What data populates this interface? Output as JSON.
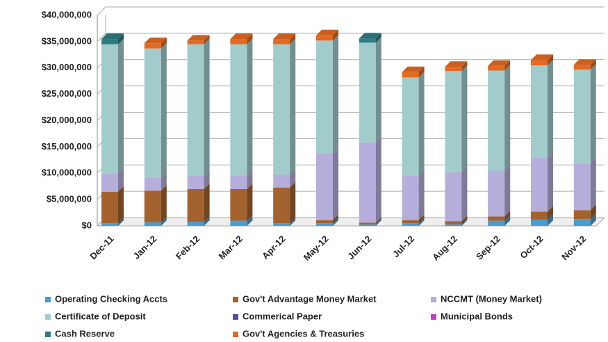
{
  "chart_data": {
    "type": "bar3d-stacked",
    "categories": [
      "Dec-11",
      "Jan-12",
      "Feb-12",
      "Mar-12",
      "Apr-12",
      "May-12",
      "Jun-12",
      "Jul-12",
      "Aug-12",
      "Sep-12",
      "Oct-12",
      "Nov-12"
    ],
    "series": [
      {
        "name": "Operating Checking Accts",
        "color": "#4a9ccf",
        "values": [
          500000,
          700000,
          800000,
          1000000,
          500000,
          500000,
          300000,
          500000,
          300000,
          1000000,
          1200000,
          1300000
        ]
      },
      {
        "name": "Gov't Advantage Money Market",
        "color": "#a3622e",
        "values": [
          6000000,
          6000000,
          6200000,
          6000000,
          6800000,
          600000,
          300000,
          600000,
          600000,
          800000,
          1500000,
          1700000
        ]
      },
      {
        "name": "NCCMT (Money Market)",
        "color": "#b5aedb",
        "values": [
          3500000,
          2500000,
          2500000,
          2500000,
          2400000,
          12700000,
          15200000,
          8500000,
          9300000,
          8700000,
          10200000,
          8900000
        ]
      },
      {
        "name": "Certificate of Deposit",
        "color": "#a2cccc",
        "values": [
          24500000,
          24500000,
          25000000,
          25000000,
          24800000,
          21400000,
          19000000,
          18600000,
          19200000,
          19000000,
          17600000,
          17800000
        ]
      },
      {
        "name": "Commerical Paper",
        "color": "#5b4b9c",
        "values": [
          0,
          0,
          0,
          0,
          0,
          0,
          0,
          0,
          0,
          0,
          0,
          0
        ]
      },
      {
        "name": "Municipal Bonds",
        "color": "#c23fc0",
        "values": [
          0,
          0,
          0,
          0,
          0,
          0,
          0,
          0,
          0,
          0,
          0,
          0
        ]
      },
      {
        "name": "Cash  Reserve",
        "color": "#2f7b82",
        "values": [
          1000000,
          0,
          0,
          0,
          0,
          0,
          800000,
          0,
          0,
          0,
          0,
          0
        ]
      },
      {
        "name": "Gov't Agencies & Treasuries",
        "color": "#e26a22",
        "values": [
          0,
          1000000,
          700000,
          1000000,
          1000000,
          1000000,
          0,
          1000000,
          800000,
          900000,
          1000000,
          900000
        ]
      }
    ],
    "ylim": [
      0,
      40000000
    ],
    "yticks": [
      {
        "value": 0,
        "label": "$0"
      },
      {
        "value": 5000000,
        "label": "$5,000,000"
      },
      {
        "value": 10000000,
        "label": "$10,000,000"
      },
      {
        "value": 15000000,
        "label": "$15,000,000"
      },
      {
        "value": 20000000,
        "label": "$20,000,000"
      },
      {
        "value": 25000000,
        "label": "$25,000,000"
      },
      {
        "value": 30000000,
        "label": "$30,000,000"
      },
      {
        "value": 35000000,
        "label": "$35,000,000"
      },
      {
        "value": 40000000,
        "label": "$40,000,000"
      }
    ],
    "grid": true,
    "legend": "bottom"
  }
}
